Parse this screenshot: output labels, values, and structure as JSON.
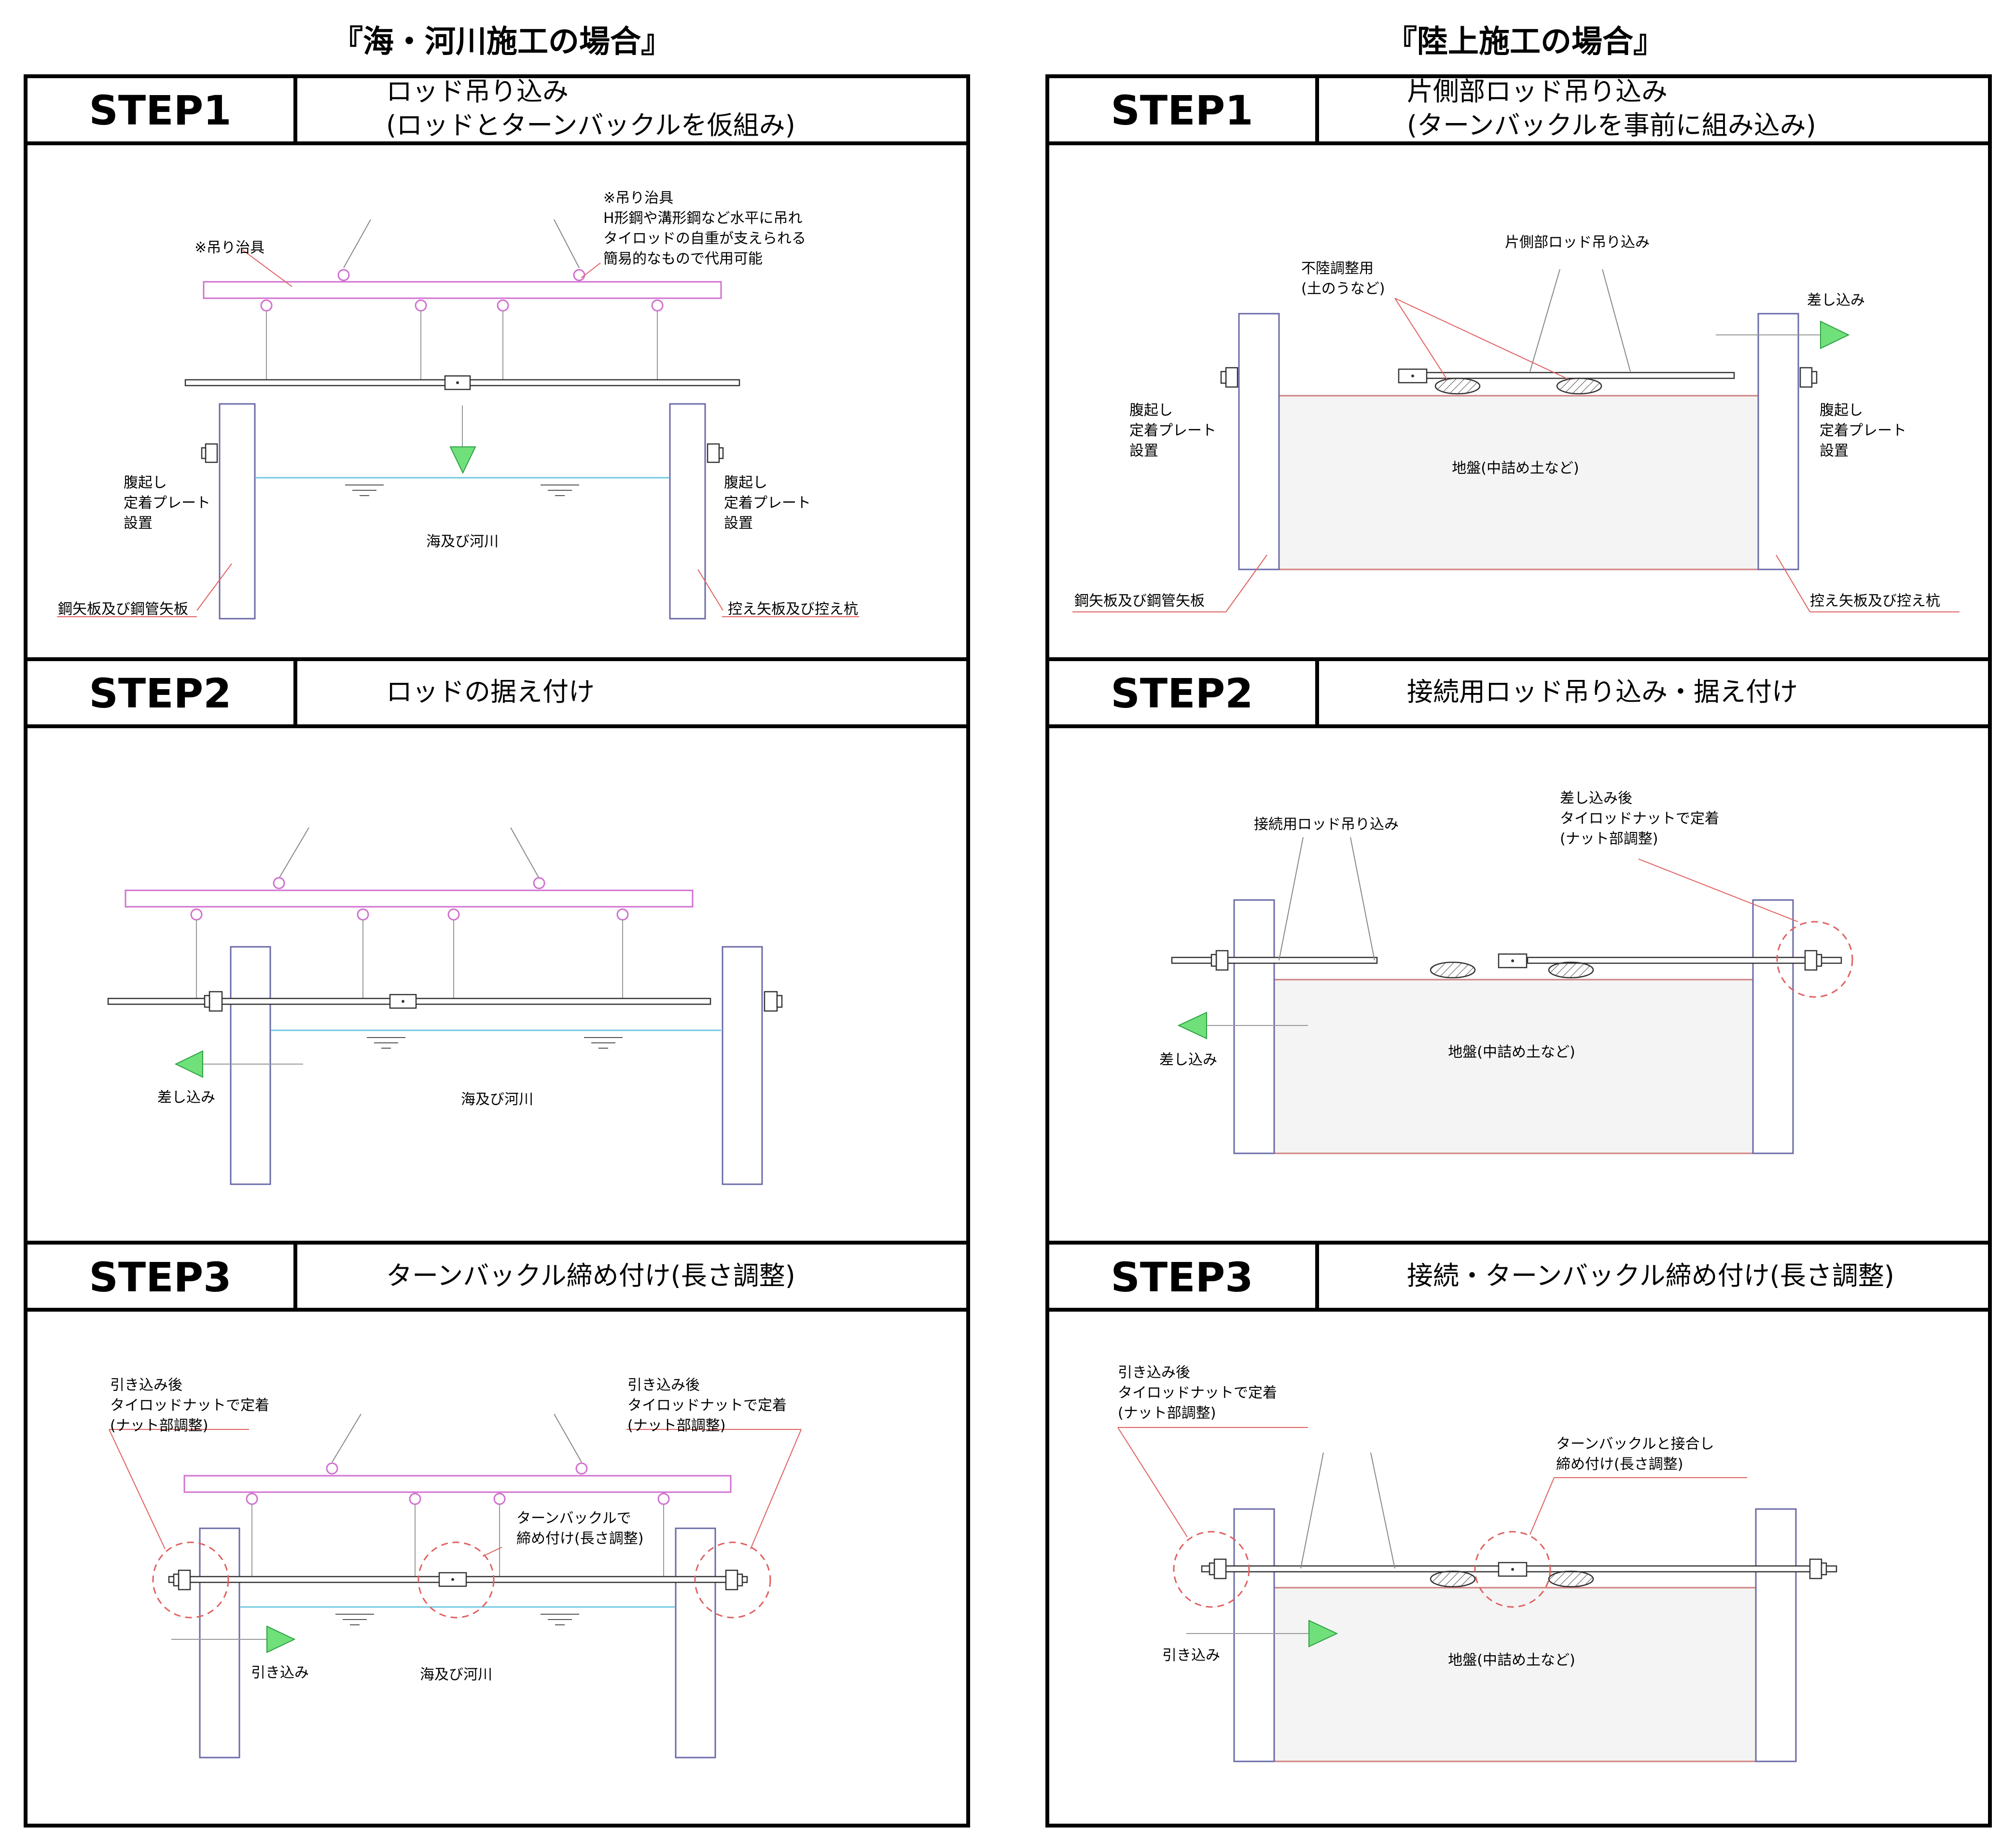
{
  "sea_section": {
    "title": "『海・河川施工の場合』",
    "step1": {
      "label": "STEP1",
      "title_line1": "ロッド吊り込み",
      "title_line2": "(ロッドとターンバックルを仮組み)",
      "jig_label": "※吊り治具",
      "jig_note": [
        "※吊り治具",
        "H形鋼や溝形鋼など水平に吊れ",
        "タイロッドの自重が支えられる",
        "簡易的なもので代用可能"
      ],
      "left_plate": [
        "腹起し",
        "定着プレート",
        "設置"
      ],
      "right_plate": [
        "腹起し",
        "定着プレート",
        "設置"
      ],
      "water_label": "海及び河川",
      "left_wall": "鋼矢板及び鋼管矢板",
      "right_wall": "控え矢板及び控え杭"
    },
    "step2": {
      "label": "STEP2",
      "title": "ロッドの据え付け",
      "insert_label": "差し込み",
      "water_label": "海及び河川"
    },
    "step3": {
      "label": "STEP3",
      "title": "ターンバックル締め付け(長さ調整)",
      "left_note": [
        "引き込み後",
        "タイロッドナットで定着",
        "(ナット部調整)"
      ],
      "right_note": [
        "引き込み後",
        "タイロッドナットで定着",
        "(ナット部調整)"
      ],
      "tb_note": [
        "ターンバックルで",
        "締め付け(長さ調整)"
      ],
      "pull_label": "引き込み",
      "water_label": "海及び河川"
    }
  },
  "land_section": {
    "title": "『陸上施工の場合』",
    "step1": {
      "label": "STEP1",
      "title_line1": "片側部ロッド吊り込み",
      "title_line2": "(ターンバックルを事前に組み込み)",
      "rod_label": "片側部ロッド吊り込み",
      "support_note": [
        "不陸調整用",
        "(土のうなど)"
      ],
      "insert_label": "差し込み",
      "left_plate": [
        "腹起し",
        "定着プレート",
        "設置"
      ],
      "right_plate": [
        "腹起し",
        "定着プレート",
        "設置"
      ],
      "ground_label": "地盤(中詰め土など)",
      "left_wall": "鋼矢板及び鋼管矢板",
      "right_wall": "控え矢板及び控え杭"
    },
    "step2": {
      "label": "STEP2",
      "title": "接続用ロッド吊り込み・据え付け",
      "rod_label": "接続用ロッド吊り込み",
      "right_note": [
        "差し込み後",
        "タイロッドナットで定着",
        "(ナット部調整)"
      ],
      "insert_label": "差し込み",
      "ground_label": "地盤(中詰め土など)"
    },
    "step3": {
      "label": "STEP3",
      "title": "接続・ターンバックル締め付け(長さ調整)",
      "left_note": [
        "引き込み後",
        "タイロッドナットで定着",
        "(ナット部調整)"
      ],
      "tb_note": [
        "ターンバックルと接合し",
        "締め付け(長さ調整)"
      ],
      "pull_label": "引き込み",
      "ground_label": "地盤(中詰め土など)"
    }
  }
}
